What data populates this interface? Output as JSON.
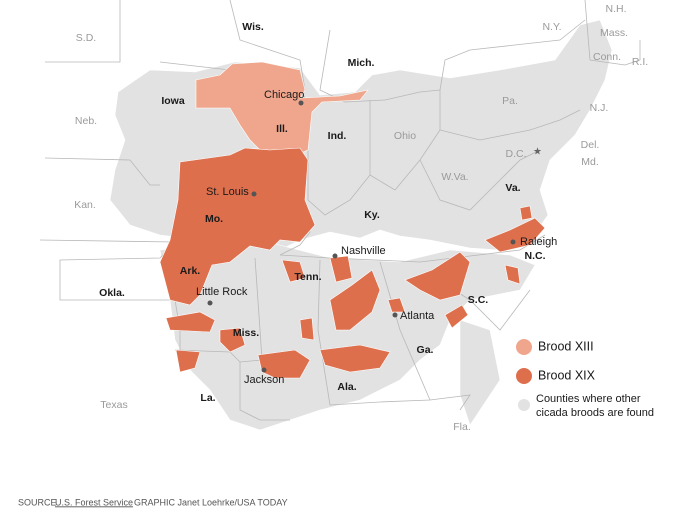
{
  "states": [
    {
      "label": "Wis."
    },
    {
      "label": "Mich."
    },
    {
      "label": "Iowa"
    },
    {
      "label": "Ill."
    },
    {
      "label": "Ind."
    },
    {
      "label": "Ohio"
    },
    {
      "label": "Pa."
    },
    {
      "label": "N.Y."
    },
    {
      "label": "N.H."
    },
    {
      "label": "Mass."
    },
    {
      "label": "Conn."
    },
    {
      "label": "R.I."
    },
    {
      "label": "N.J."
    },
    {
      "label": "Del."
    },
    {
      "label": "Md."
    },
    {
      "label": "D.C."
    },
    {
      "label": "W.Va."
    },
    {
      "label": "Va."
    },
    {
      "label": "Ky."
    },
    {
      "label": "Tenn."
    },
    {
      "label": "N.C."
    },
    {
      "label": "S.C."
    },
    {
      "label": "Ga."
    },
    {
      "label": "Ala."
    },
    {
      "label": "Miss."
    },
    {
      "label": "La."
    },
    {
      "label": "Ark."
    },
    {
      "label": "Mo."
    },
    {
      "label": "Kan."
    },
    {
      "label": "Okla."
    },
    {
      "label": "Neb."
    },
    {
      "label": "S.D."
    },
    {
      "label": "Texas"
    },
    {
      "label": "Fla."
    }
  ],
  "cities": [
    {
      "label": "Chicago"
    },
    {
      "label": "St. Louis"
    },
    {
      "label": "Nashville"
    },
    {
      "label": "Raleigh"
    },
    {
      "label": "Little Rock"
    },
    {
      "label": "Atlanta"
    },
    {
      "label": "Jackson"
    }
  ],
  "legend": [
    {
      "label": "Brood XIII"
    },
    {
      "label": "Brood XIX"
    },
    {
      "label": [
        "Counties where other",
        "cicada broods are found"
      ]
    }
  ],
  "source": {
    "prefix": "SOURCE",
    "agency": "U.S. Forest Service",
    "credit": "GRAPHIC Janet Loehrke/USA TODAY"
  }
}
